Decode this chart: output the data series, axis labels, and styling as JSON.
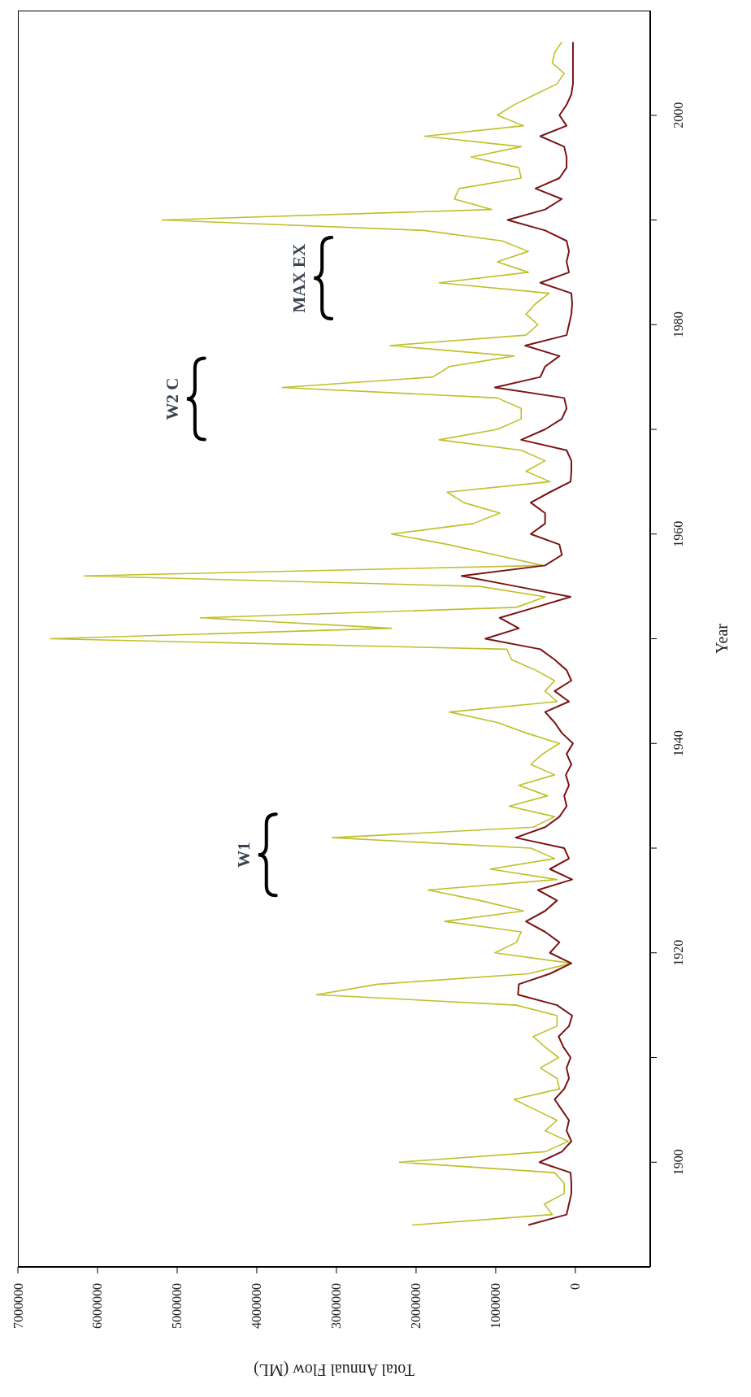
{
  "chart_data": {
    "type": "line",
    "orientation": "horizontal",
    "xlabel": "Total Annual Flow (ML)",
    "ylabel": "Year",
    "x": [
      1894,
      1895,
      1896,
      1897,
      1898,
      1899,
      1900,
      1901,
      1902,
      1903,
      1904,
      1905,
      1906,
      1907,
      1908,
      1909,
      1910,
      1911,
      1912,
      1913,
      1914,
      1915,
      1916,
      1917,
      1918,
      1919,
      1920,
      1921,
      1922,
      1923,
      1924,
      1925,
      1926,
      1927,
      1928,
      1929,
      1930,
      1931,
      1932,
      1933,
      1934,
      1935,
      1936,
      1937,
      1938,
      1939,
      1940,
      1941,
      1942,
      1943,
      1944,
      1945,
      1946,
      1947,
      1948,
      1949,
      1950,
      1951,
      1952,
      1953,
      1954,
      1955,
      1956,
      1957,
      1958,
      1959,
      1960,
      1961,
      1962,
      1963,
      1964,
      1965,
      1966,
      1967,
      1968,
      1969,
      1970,
      1971,
      1972,
      1973,
      1974,
      1975,
      1976,
      1977,
      1978,
      1979,
      1980,
      1981,
      1982,
      1983,
      1984,
      1985,
      1986,
      1987,
      1988,
      1989,
      1990,
      1991,
      1992,
      1993,
      1994,
      1995,
      1996,
      1997,
      1998,
      1999,
      2000,
      2001,
      2002,
      2003,
      2004,
      2005,
      2006,
      2007
    ],
    "series": [
      {
        "color": "#bfc02a",
        "values": [
          2050000,
          290000,
          390000,
          140000,
          140000,
          260000,
          2210000,
          380000,
          90000,
          380000,
          230000,
          500000,
          770000,
          200000,
          230000,
          440000,
          210000,
          380000,
          530000,
          230000,
          230000,
          740000,
          3250000,
          2480000,
          590000,
          50000,
          1010000,
          740000,
          680000,
          1640000,
          650000,
          1200000,
          1850000,
          230000,
          1070000,
          260000,
          560000,
          3050000,
          530000,
          260000,
          830000,
          350000,
          710000,
          260000,
          560000,
          410000,
          200000,
          620000,
          980000,
          1580000,
          230000,
          380000,
          260000,
          500000,
          800000,
          860000,
          6590000,
          2310000,
          4710000,
          740000,
          380000,
          1200000,
          6170000,
          410000,
          1000000,
          1600000,
          2310000,
          1280000,
          950000,
          1400000,
          1610000,
          320000,
          620000,
          380000,
          680000,
          1710000,
          980000,
          680000,
          680000,
          980000,
          3680000,
          1790000,
          1580000,
          770000,
          2330000,
          620000,
          470000,
          620000,
          500000,
          330000,
          1710000,
          590000,
          980000,
          590000,
          920000,
          1900000,
          5190000,
          1050000,
          1520000,
          1460000,
          680000,
          710000,
          1310000,
          680000,
          1890000,
          650000,
          980000,
          770000,
          500000,
          230000,
          140000,
          290000,
          260000,
          170000
        ]
      },
      {
        "color": "#7a1414",
        "values": [
          590000,
          110000,
          80000,
          50000,
          50000,
          60000,
          450000,
          170000,
          50000,
          110000,
          80000,
          170000,
          260000,
          140000,
          80000,
          110000,
          60000,
          150000,
          210000,
          80000,
          40000,
          230000,
          720000,
          710000,
          320000,
          50000,
          320000,
          200000,
          380000,
          620000,
          380000,
          230000,
          470000,
          40000,
          320000,
          80000,
          140000,
          750000,
          380000,
          200000,
          110000,
          140000,
          80000,
          120000,
          50000,
          110000,
          30000,
          170000,
          260000,
          380000,
          80000,
          260000,
          50000,
          110000,
          260000,
          440000,
          1130000,
          710000,
          950000,
          500000,
          60000,
          740000,
          1430000,
          380000,
          170000,
          200000,
          560000,
          380000,
          380000,
          560000,
          320000,
          60000,
          50000,
          50000,
          110000,
          680000,
          380000,
          170000,
          110000,
          140000,
          1010000,
          440000,
          380000,
          200000,
          630000,
          110000,
          80000,
          50000,
          40000,
          50000,
          440000,
          80000,
          110000,
          80000,
          110000,
          380000,
          850000,
          380000,
          170000,
          500000,
          200000,
          110000,
          110000,
          140000,
          440000,
          110000,
          200000,
          110000,
          50000,
          30000,
          30000,
          30000,
          30000,
          30000
        ]
      }
    ],
    "ylim": [
      1890,
      2010
    ],
    "yticks": [
      1900,
      {
        "value": 1910,
        "label": null
      },
      1920,
      {
        "value": 1930,
        "label": null
      },
      1940,
      {
        "value": 1950,
        "label": null
      },
      1960,
      {
        "value": 1970,
        "label": null
      },
      1980,
      {
        "value": 1990,
        "label": null
      },
      2000
    ],
    "xlim": [
      7000000,
      -940000
    ],
    "xticks": [
      0,
      1000000,
      2000000,
      3000000,
      4000000,
      5000000,
      6000000,
      7000000
    ],
    "marker": "none",
    "annotations": [
      "W1",
      "W2 C",
      "MAX EX"
    ]
  }
}
